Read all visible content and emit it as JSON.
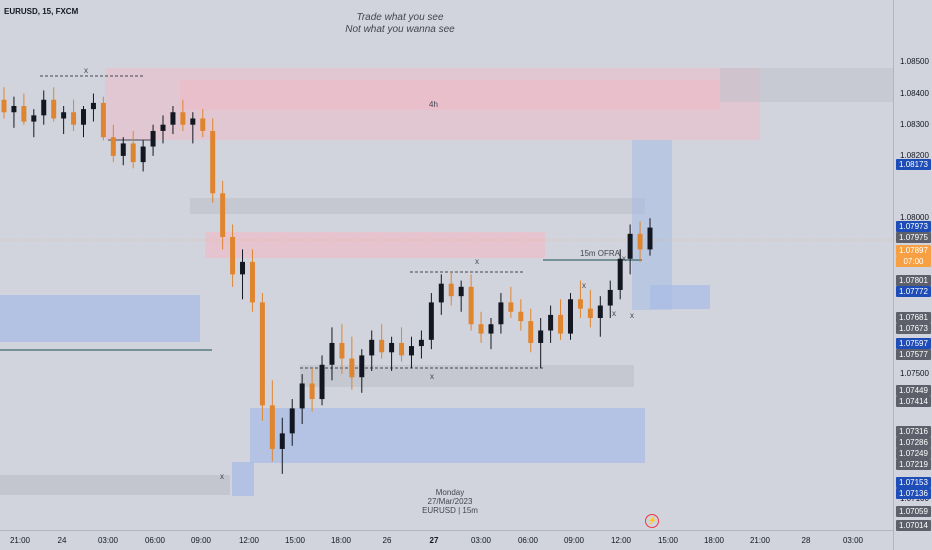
{
  "header": {
    "symbol": "EURUSD, 15, FXCM"
  },
  "quote": {
    "line1": "Trade what you see",
    "line2": "Not what you wanna see"
  },
  "annotations": {
    "zone_4h": "4h",
    "ofra": "15m OFRA",
    "x_marks": [
      "x",
      "x",
      "x",
      "x",
      "x",
      "x",
      "x",
      "x"
    ]
  },
  "watermark": {
    "day": "Monday",
    "date": "27/Mar/2023",
    "instrument": "EURUSD | 15m"
  },
  "colors": {
    "up": "#131722",
    "down": "#e0852f",
    "supply_zone": "#f2b8c6",
    "demand_zone": "#a8bce6",
    "gray_zone": "#bdc0c8",
    "last_price": "#f7a043",
    "badge_blue": "#1e4db7",
    "badge_gray": "#5d606b"
  },
  "chart_data": {
    "type": "candlestick",
    "ylim": [
      1.07,
      1.087
    ],
    "price_ticks": [
      "1.08500",
      "1.08400",
      "1.08300",
      "1.08200",
      "1.08000",
      "1.07500",
      "1.07100"
    ],
    "price_badges": [
      {
        "label": "1.08173",
        "kind": "blue"
      },
      {
        "label": "1.07973",
        "kind": "blue"
      },
      {
        "label": "1.07975",
        "kind": "gray"
      },
      {
        "label": "1.07897",
        "kind": "orange"
      },
      {
        "label": "07:00",
        "kind": "orange"
      },
      {
        "label": "1.07801",
        "kind": "gray"
      },
      {
        "label": "1.07772",
        "kind": "blue"
      },
      {
        "label": "1.07681",
        "kind": "gray"
      },
      {
        "label": "1.07673",
        "kind": "gray"
      },
      {
        "label": "1.07597",
        "kind": "blue"
      },
      {
        "label": "1.07577",
        "kind": "gray"
      },
      {
        "label": "1.07449",
        "kind": "gray"
      },
      {
        "label": "1.07414",
        "kind": "gray"
      },
      {
        "label": "1.07316",
        "kind": "gray"
      },
      {
        "label": "1.07286",
        "kind": "gray"
      },
      {
        "label": "1.07249",
        "kind": "gray"
      },
      {
        "label": "1.07219",
        "kind": "gray"
      },
      {
        "label": "1.07153",
        "kind": "blue"
      },
      {
        "label": "1.07136",
        "kind": "blue"
      },
      {
        "label": "1.07059",
        "kind": "gray"
      },
      {
        "label": "1.07014",
        "kind": "gray"
      }
    ],
    "time_ticks": [
      {
        "label": "21:00",
        "bold": false
      },
      {
        "label": "24",
        "bold": false
      },
      {
        "label": "03:00",
        "bold": false
      },
      {
        "label": "06:00",
        "bold": false
      },
      {
        "label": "09:00",
        "bold": false
      },
      {
        "label": "12:00",
        "bold": false
      },
      {
        "label": "15:00",
        "bold": false
      },
      {
        "label": "18:00",
        "bold": false
      },
      {
        "label": "26",
        "bold": false
      },
      {
        "label": "27",
        "bold": true
      },
      {
        "label": "03:00",
        "bold": false
      },
      {
        "label": "06:00",
        "bold": false
      },
      {
        "label": "09:00",
        "bold": false
      },
      {
        "label": "12:00",
        "bold": false
      },
      {
        "label": "15:00",
        "bold": false
      },
      {
        "label": "18:00",
        "bold": false
      },
      {
        "label": "21:00",
        "bold": false
      },
      {
        "label": "28",
        "bold": false
      },
      {
        "label": "03:00",
        "bold": false
      }
    ],
    "candles": [
      [
        1.0838,
        1.0842,
        1.0832,
        1.0834
      ],
      [
        1.0834,
        1.0839,
        1.0829,
        1.0836
      ],
      [
        1.0836,
        1.084,
        1.083,
        1.0831
      ],
      [
        1.0831,
        1.0835,
        1.0826,
        1.0833
      ],
      [
        1.0833,
        1.0841,
        1.083,
        1.0838
      ],
      [
        1.0838,
        1.0842,
        1.0831,
        1.0832
      ],
      [
        1.0832,
        1.0836,
        1.0827,
        1.0834
      ],
      [
        1.0834,
        1.0838,
        1.0828,
        1.083
      ],
      [
        1.083,
        1.0836,
        1.0826,
        1.0835
      ],
      [
        1.0835,
        1.084,
        1.0831,
        1.0837
      ],
      [
        1.0837,
        1.0839,
        1.0825,
        1.0826
      ],
      [
        1.0826,
        1.083,
        1.0818,
        1.082
      ],
      [
        1.082,
        1.0826,
        1.0817,
        1.0824
      ],
      [
        1.0824,
        1.0828,
        1.0816,
        1.0818
      ],
      [
        1.0818,
        1.0825,
        1.0815,
        1.0823
      ],
      [
        1.0823,
        1.083,
        1.082,
        1.0828
      ],
      [
        1.0828,
        1.0833,
        1.0824,
        1.083
      ],
      [
        1.083,
        1.0836,
        1.0827,
        1.0834
      ],
      [
        1.0834,
        1.0838,
        1.0828,
        1.083
      ],
      [
        1.083,
        1.0834,
        1.0824,
        1.0832
      ],
      [
        1.0832,
        1.0835,
        1.0826,
        1.0828
      ],
      [
        1.0828,
        1.0832,
        1.0805,
        1.0808
      ],
      [
        1.0808,
        1.0812,
        1.079,
        1.0794
      ],
      [
        1.0794,
        1.0798,
        1.0778,
        1.0782
      ],
      [
        1.0782,
        1.079,
        1.0774,
        1.0786
      ],
      [
        1.0786,
        1.079,
        1.077,
        1.0773
      ],
      [
        1.0773,
        1.0776,
        1.0735,
        1.074
      ],
      [
        1.074,
        1.0748,
        1.0722,
        1.0726
      ],
      [
        1.0726,
        1.0736,
        1.0718,
        1.0731
      ],
      [
        1.0731,
        1.0742,
        1.0727,
        1.0739
      ],
      [
        1.0739,
        1.075,
        1.0734,
        1.0747
      ],
      [
        1.0747,
        1.0752,
        1.0738,
        1.0742
      ],
      [
        1.0742,
        1.0756,
        1.074,
        1.0753
      ],
      [
        1.0753,
        1.0765,
        1.0748,
        1.076
      ],
      [
        1.076,
        1.0766,
        1.075,
        1.0755
      ],
      [
        1.0755,
        1.0762,
        1.0745,
        1.0749
      ],
      [
        1.0749,
        1.0758,
        1.0744,
        1.0756
      ],
      [
        1.0756,
        1.0764,
        1.0751,
        1.0761
      ],
      [
        1.0761,
        1.0766,
        1.0755,
        1.0757
      ],
      [
        1.0757,
        1.0762,
        1.0751,
        1.076
      ],
      [
        1.076,
        1.0765,
        1.0754,
        1.0756
      ],
      [
        1.0756,
        1.0762,
        1.0752,
        1.0759
      ],
      [
        1.0759,
        1.0764,
        1.0755,
        1.0761
      ],
      [
        1.0761,
        1.0776,
        1.0758,
        1.0773
      ],
      [
        1.0773,
        1.0782,
        1.0769,
        1.0779
      ],
      [
        1.0779,
        1.0783,
        1.0772,
        1.0775
      ],
      [
        1.0775,
        1.078,
        1.077,
        1.0778
      ],
      [
        1.0778,
        1.0782,
        1.0764,
        1.0766
      ],
      [
        1.0766,
        1.077,
        1.076,
        1.0763
      ],
      [
        1.0763,
        1.0768,
        1.0758,
        1.0766
      ],
      [
        1.0766,
        1.0776,
        1.0763,
        1.0773
      ],
      [
        1.0773,
        1.0778,
        1.0768,
        1.077
      ],
      [
        1.077,
        1.0774,
        1.0764,
        1.0767
      ],
      [
        1.0767,
        1.0771,
        1.0757,
        1.076
      ],
      [
        1.076,
        1.0768,
        1.0752,
        1.0764
      ],
      [
        1.0764,
        1.0772,
        1.076,
        1.0769
      ],
      [
        1.0769,
        1.0774,
        1.0761,
        1.0763
      ],
      [
        1.0763,
        1.0776,
        1.0761,
        1.0774
      ],
      [
        1.0774,
        1.078,
        1.0768,
        1.0771
      ],
      [
        1.0771,
        1.0777,
        1.0765,
        1.0768
      ],
      [
        1.0768,
        1.0775,
        1.0762,
        1.0772
      ],
      [
        1.0772,
        1.078,
        1.0768,
        1.0777
      ],
      [
        1.0777,
        1.079,
        1.0774,
        1.0787
      ],
      [
        1.0787,
        1.0798,
        1.0782,
        1.0795
      ],
      [
        1.0795,
        1.0799,
        1.0786,
        1.079
      ],
      [
        1.079,
        1.08,
        1.0788,
        1.0797
      ]
    ]
  }
}
